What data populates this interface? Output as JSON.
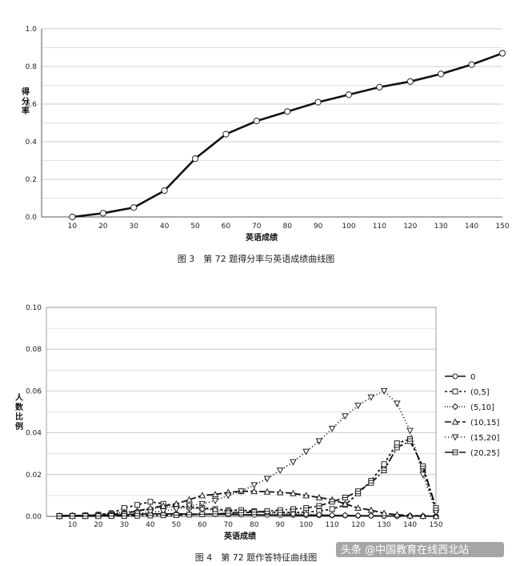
{
  "chart_data": [
    {
      "type": "line",
      "title": "",
      "caption": "图 3　第 72 题得分率与英语成绩曲线图",
      "xlabel": "英语成绩",
      "ylabel": "得分率",
      "xlim": [
        0,
        150
      ],
      "ylim": [
        0,
        1.0
      ],
      "x_ticks": [
        "10",
        "20",
        "30",
        "40",
        "50",
        "60",
        "70",
        "80",
        "90",
        "100",
        "110",
        "120",
        "130",
        "140",
        "150"
      ],
      "y_ticks": [
        "0.0",
        "0.2",
        "0.4",
        "0.6",
        "0.8",
        "1.0"
      ],
      "grid": true,
      "series": [
        {
          "name": "得分率",
          "x": [
            10,
            20,
            30,
            40,
            50,
            60,
            70,
            80,
            90,
            100,
            110,
            120,
            130,
            140,
            150
          ],
          "values": [
            0.0,
            0.02,
            0.05,
            0.14,
            0.31,
            0.44,
            0.51,
            0.56,
            0.61,
            0.65,
            0.69,
            0.72,
            0.76,
            0.81,
            0.87
          ]
        }
      ]
    },
    {
      "type": "line",
      "title": "",
      "caption": "图 4　第 72 题作答特征曲线图",
      "xlabel": "英语成绩",
      "ylabel": "人数比例",
      "xlim": [
        0,
        150
      ],
      "ylim": [
        0,
        0.1
      ],
      "x_ticks": [
        "10",
        "20",
        "30",
        "40",
        "50",
        "60",
        "70",
        "80",
        "90",
        "100",
        "110",
        "120",
        "130",
        "140",
        "150"
      ],
      "y_ticks": [
        "0.00",
        "0.02",
        "0.04",
        "0.06",
        "0.08",
        "0.10"
      ],
      "grid": true,
      "legend_position": "right",
      "x": [
        5,
        10,
        15,
        20,
        25,
        30,
        35,
        40,
        45,
        50,
        55,
        60,
        65,
        70,
        75,
        80,
        85,
        90,
        95,
        100,
        105,
        110,
        115,
        120,
        125,
        130,
        135,
        140,
        145,
        150
      ],
      "series": [
        {
          "name": "0",
          "marker": "circle",
          "dash": "",
          "values": [
            0.0004,
            0.0004,
            0.0004,
            0.0005,
            0.0006,
            0.0008,
            0.001,
            0.0012,
            0.0012,
            0.0012,
            0.0011,
            0.001,
            0.001,
            0.0009,
            0.0008,
            0.0007,
            0.0007,
            0.0006,
            0.0006,
            0.0005,
            0.0005,
            0.0004,
            0.0004,
            0.0003,
            0.0003,
            0.0002,
            0.0002,
            0.0002,
            0.0001,
            0.0001
          ]
        },
        {
          "name": "(0,5]",
          "marker": "square",
          "dash": "3,3",
          "values": [
            0.0002,
            0.0003,
            0.0005,
            0.0008,
            0.0015,
            0.004,
            0.0055,
            0.007,
            0.006,
            0.005,
            0.0045,
            0.004,
            0.0035,
            0.003,
            0.003,
            0.0025,
            0.002,
            0.002,
            0.0018,
            0.002,
            0.0025,
            0.0035,
            0.0055,
            0.011,
            0.017,
            0.025,
            0.035,
            0.037,
            0.023,
            0.003
          ]
        },
        {
          "name": "(5,10]",
          "marker": "diamond",
          "dash": "1,2",
          "values": [
            0.0002,
            0.0003,
            0.0005,
            0.0008,
            0.0015,
            0.002,
            0.0025,
            0.0035,
            0.0045,
            0.0045,
            0.004,
            0.0035,
            0.003,
            0.0025,
            0.002,
            0.002,
            0.0018,
            0.0015,
            0.0012,
            0.001,
            0.0008,
            0.0006,
            0.0005,
            0.0004,
            0.0003,
            0.0002,
            0.0002,
            0.0001,
            0.0001,
            0.0001
          ]
        },
        {
          "name": "(10,15]",
          "marker": "triangle-up",
          "dash": "8,3",
          "values": [
            0.0001,
            0.0002,
            0.0003,
            0.0005,
            0.0008,
            0.0015,
            0.0025,
            0.004,
            0.005,
            0.006,
            0.008,
            0.01,
            0.0105,
            0.0115,
            0.012,
            0.012,
            0.0118,
            0.0115,
            0.011,
            0.01,
            0.009,
            0.008,
            0.006,
            0.004,
            0.003,
            0.0015,
            0.0008,
            0.0004,
            0.0002,
            0.0001
          ]
        },
        {
          "name": "(15,20]",
          "marker": "triangle-down",
          "dash": "1,3",
          "values": [
            0.0001,
            0.0001,
            0.0002,
            0.0003,
            0.0005,
            0.001,
            0.0015,
            0.002,
            0.0025,
            0.0035,
            0.005,
            0.006,
            0.0075,
            0.01,
            0.012,
            0.015,
            0.018,
            0.022,
            0.026,
            0.031,
            0.036,
            0.042,
            0.048,
            0.053,
            0.057,
            0.06,
            0.054,
            0.041,
            0.02,
            0.002
          ]
        },
        {
          "name": "(20,25]",
          "marker": "square-line",
          "dash": "10,3,2,3",
          "values": [
            0.0001,
            0.0001,
            0.0001,
            0.0001,
            0.0002,
            0.0002,
            0.0003,
            0.0004,
            0.0005,
            0.0006,
            0.0008,
            0.001,
            0.0012,
            0.0015,
            0.0018,
            0.002,
            0.0025,
            0.003,
            0.0035,
            0.004,
            0.005,
            0.007,
            0.009,
            0.012,
            0.016,
            0.022,
            0.033,
            0.036,
            0.024,
            0.004
          ]
        }
      ]
    }
  ],
  "watermark": {
    "text": "头条 @中国教育在线西北站"
  }
}
